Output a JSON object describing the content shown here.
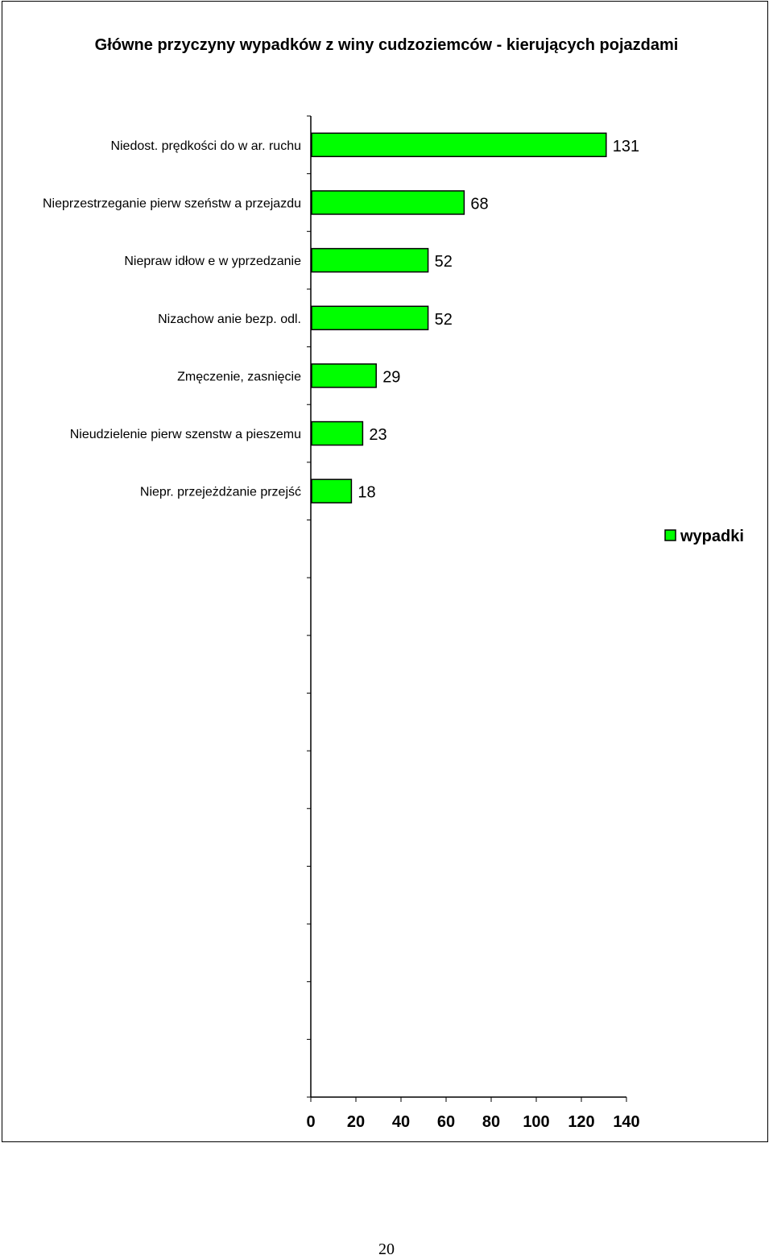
{
  "chart_data": {
    "type": "bar",
    "orientation": "horizontal",
    "title": "Główne przyczyny wypadków z winy cudzoziemców - kierujących pojazdami",
    "categories": [
      "Niedost. prędkości do w ar. ruchu",
      "Nieprzestrzeganie pierw szeństw a przejazdu",
      "Niepraw idłow e w yprzedzanie",
      "Nizachow anie bezp. odl.",
      "Zmęczenie, zasnięcie",
      "Nieudzielenie pierw szenstw a pieszemu",
      "Niepr. przejeżdżanie przejść"
    ],
    "series": [
      {
        "name": "wypadki",
        "values": [
          131,
          68,
          52,
          52,
          29,
          23,
          18
        ]
      }
    ],
    "data_labels": [
      "131",
      "68",
      "52",
      "52",
      "29",
      "23",
      "18"
    ],
    "x_ticks": [
      "0",
      "20",
      "40",
      "60",
      "80",
      "100",
      "120",
      "140"
    ],
    "xlim": [
      0,
      140
    ],
    "grid": false,
    "legend_position": "right",
    "bar_color": "#00ff00",
    "border_color": "#000000"
  },
  "page": {
    "number": "20"
  }
}
